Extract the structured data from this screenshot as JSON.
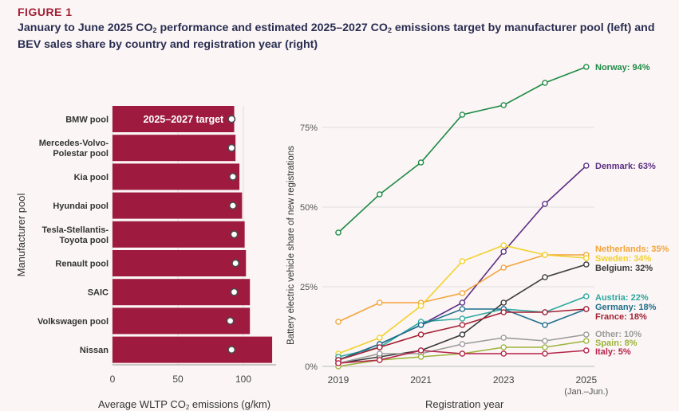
{
  "figure_label": "FIGURE 1",
  "title": {
    "part1": "January to June 2025 CO",
    "sub": "2",
    "part2": " performance and estimated 2025–2027 CO",
    "part3": " emissions target by manufacturer pool (left) and BEV sales share by country and registration year (right)"
  },
  "chart_data": [
    {
      "type": "bar",
      "orientation": "horizontal",
      "ylabel": "Manufacturer pool",
      "xlabel_part1": "Average WLTP CO",
      "xlabel_sub": "2",
      "xlabel_part2": " emissions (g/km)",
      "xlim": [
        0,
        125
      ],
      "xticks": [
        0,
        50,
        100
      ],
      "target_label": "2025–2027 target",
      "categories": [
        "BMW pool",
        "Mercedes-Volvo-Polestar pool",
        "Kia pool",
        "Hyundai pool",
        "Tesla-Stellantis-Toyota pool",
        "Renault pool",
        "SAIC",
        "Volkswagen pool",
        "Nissan"
      ],
      "category_lines": [
        [
          "BMW pool"
        ],
        [
          "Mercedes-Volvo-",
          "Polestar pool"
        ],
        [
          "Kia pool"
        ],
        [
          "Hyundai pool"
        ],
        [
          "Tesla-Stellantis-",
          "Toyota pool"
        ],
        [
          "Renault pool"
        ],
        [
          "SAIC"
        ],
        [
          "Volkswagen pool"
        ],
        [
          "Nissan"
        ]
      ],
      "series": [
        {
          "name": "Average WLTP CO2 emissions",
          "values": [
            93,
            94,
            97,
            99,
            101,
            102,
            105,
            105,
            122
          ]
        },
        {
          "name": "2025–2027 target",
          "values": [
            91,
            91,
            92,
            92,
            93,
            94,
            93,
            90,
            91
          ]
        }
      ],
      "colors": {
        "bar": "#9e1b3f",
        "target_marker": "#4a4a4a"
      }
    },
    {
      "type": "line",
      "xlabel": "Registration year",
      "ylabel": "Battery electric vehicle share of new registrations",
      "x": [
        2019,
        2020,
        2021,
        2022,
        2023,
        2024,
        2025
      ],
      "xticks": [
        "2019",
        "2021",
        "2023",
        "2025"
      ],
      "xtick_note": "(Jan.–Jun.)",
      "ylim": [
        0,
        100
      ],
      "yticks": [
        "0%",
        "25%",
        "50%",
        "75%"
      ],
      "series": [
        {
          "name": "Norway",
          "label": "Norway: 94%",
          "color": "#1e8a45",
          "values": [
            42,
            54,
            64,
            79,
            82,
            89,
            94
          ]
        },
        {
          "name": "Denmark",
          "label": "Denmark: 63%",
          "color": "#5c2e84",
          "values": [
            2,
            7,
            13,
            20,
            36,
            51,
            63
          ]
        },
        {
          "name": "Netherlands",
          "label": "Netherlands: 35%",
          "color": "#f2a43a",
          "values": [
            14,
            20,
            20,
            23,
            31,
            35,
            35
          ]
        },
        {
          "name": "Sweden",
          "label": "Sweden: 34%",
          "color": "#f2d12b",
          "values": [
            4,
            9,
            19,
            33,
            38,
            35,
            34
          ]
        },
        {
          "name": "Belgium",
          "label": "Belgium: 32%",
          "color": "#3a3a3a",
          "values": [
            1,
            3,
            5,
            10,
            20,
            28,
            32
          ]
        },
        {
          "name": "Austria",
          "label": "Austria: 22%",
          "color": "#2ba89e",
          "values": [
            3,
            6,
            14,
            15,
            18,
            17,
            22
          ]
        },
        {
          "name": "Germany",
          "label": "Germany: 18%",
          "color": "#1f6f8b",
          "values": [
            2,
            7,
            13,
            18,
            18,
            13,
            18
          ]
        },
        {
          "name": "France",
          "label": "France: 18%",
          "color": "#a32035",
          "values": [
            2,
            6,
            10,
            13,
            17,
            17,
            18
          ]
        },
        {
          "name": "Other",
          "label": "Other: 10%",
          "color": "#9a9a9a",
          "values": [
            1,
            4,
            4,
            7,
            9,
            8,
            10
          ]
        },
        {
          "name": "Spain",
          "label": "Spain: 8%",
          "color": "#9bb43c",
          "values": [
            0,
            2,
            3,
            4,
            6,
            6,
            8
          ]
        },
        {
          "name": "Italy",
          "label": "Italy: 5%",
          "color": "#b5224a",
          "values": [
            1,
            2,
            5,
            4,
            4,
            4,
            5
          ]
        }
      ]
    }
  ]
}
